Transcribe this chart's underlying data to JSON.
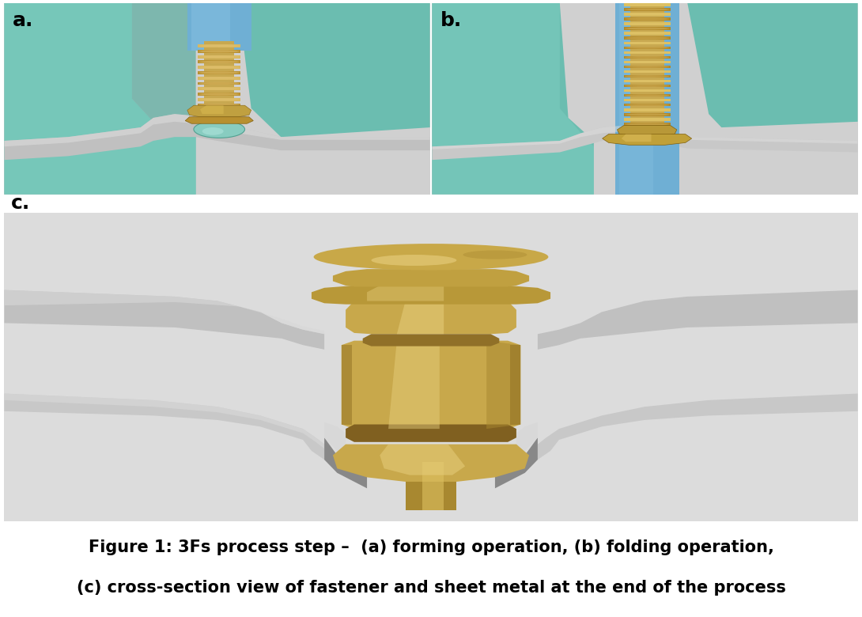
{
  "title_line1": "Figure 1: 3Fs process step –  (a) forming operation, (b) folding operation,",
  "title_line2": "(c) cross-section view of fastener and sheet metal at the end of the process",
  "label_a": "a.",
  "label_b": "b.",
  "label_c": "c.",
  "bg_color": "#ffffff",
  "text_color": "#000000",
  "caption_fontsize": 15,
  "label_fontsize": 18,
  "fig_width": 10.9,
  "fig_height": 7.8
}
